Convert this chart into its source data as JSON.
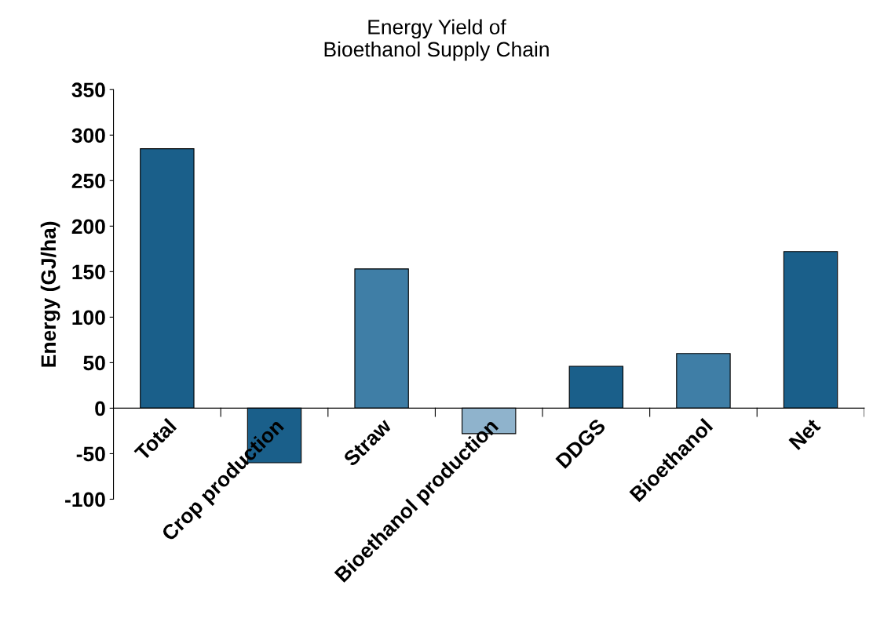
{
  "chart_data": {
    "type": "bar",
    "title": "Energy Yield of\nBioethanol Supply Chain",
    "ylabel": "Energy (GJ/ha)",
    "categories": [
      "Total",
      "Crop production",
      "Straw",
      "Bioethanol production",
      "DDGS",
      "Bioethanol",
      "Net"
    ],
    "values": [
      285,
      -60,
      153,
      -28,
      46,
      60,
      172
    ],
    "colors": [
      "#1a5f8a",
      "#1a5f8a",
      "#3f7ea6",
      "#8fb3cc",
      "#1a5f8a",
      "#3f7ea6",
      "#1a5f8a"
    ],
    "ylim": [
      -100,
      350
    ],
    "yticks": [
      -100,
      -50,
      0,
      50,
      100,
      150,
      200,
      250,
      300,
      350
    ],
    "grid": false,
    "legend": false
  }
}
